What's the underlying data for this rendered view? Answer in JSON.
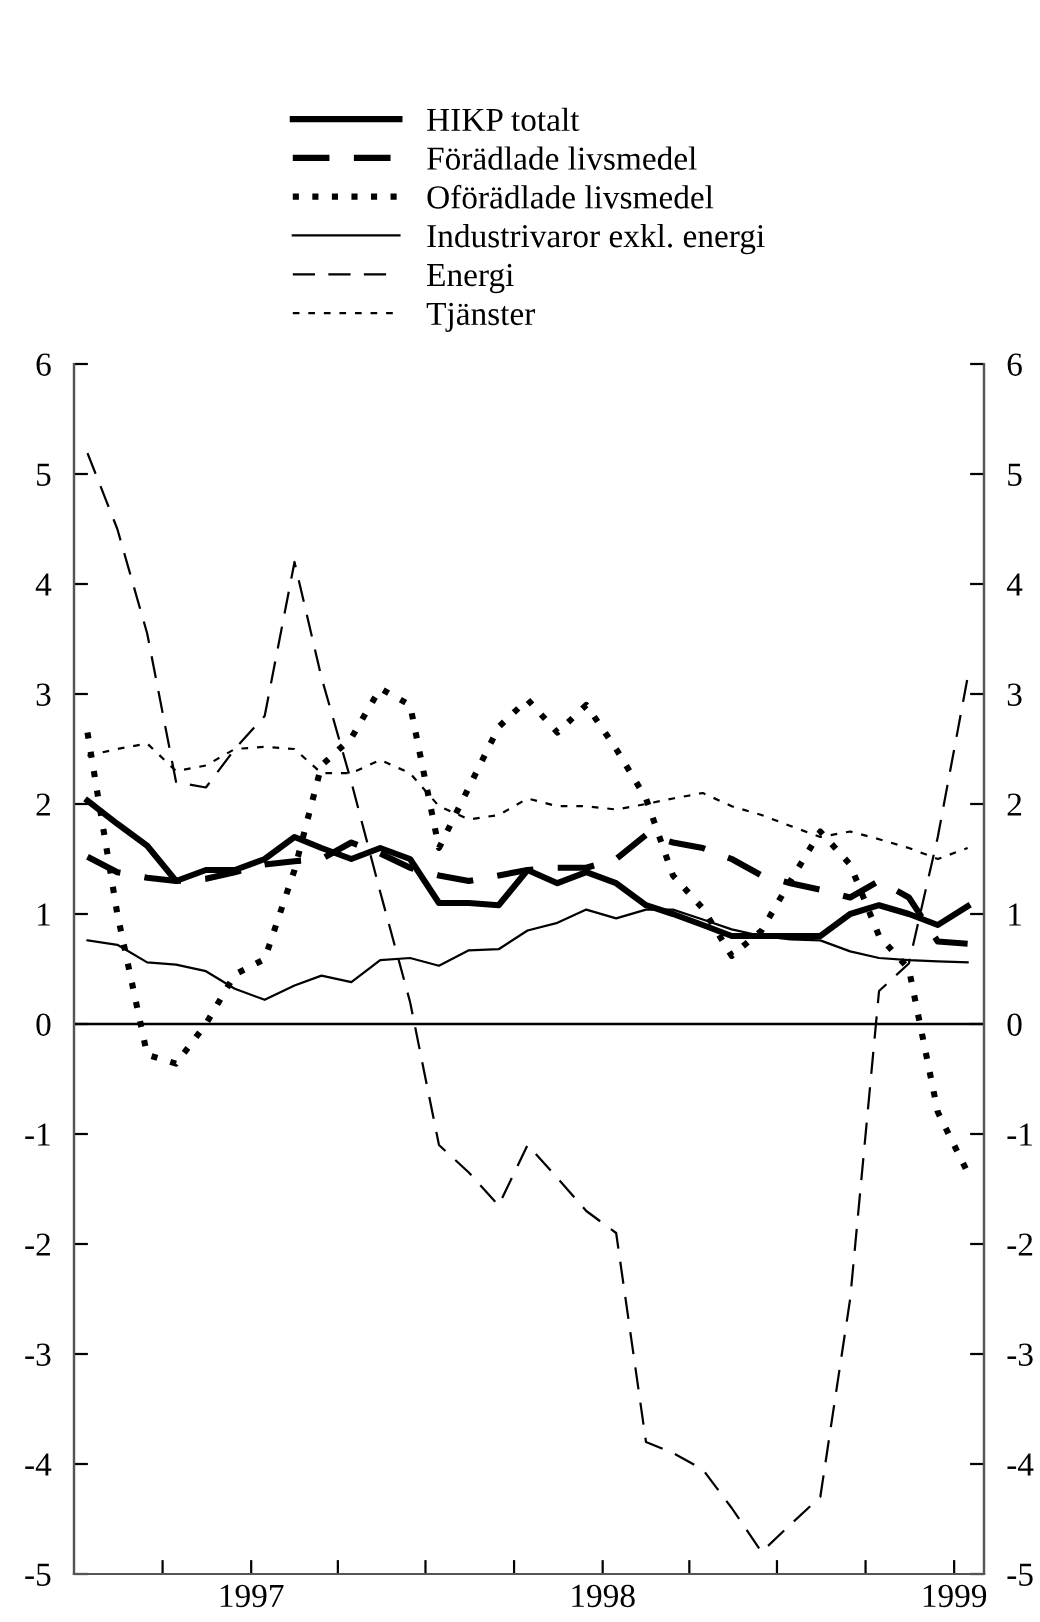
{
  "chart_data": {
    "type": "line",
    "x": [
      "1996-07-15",
      "1996-08-15",
      "1996-09-15",
      "1996-10-15",
      "1996-11-15",
      "1996-12-15",
      "1997-01-15",
      "1997-02-15",
      "1997-03-15",
      "1997-04-15",
      "1997-05-15",
      "1997-06-15",
      "1997-07-15",
      "1997-08-15",
      "1997-09-15",
      "1997-10-15",
      "1997-11-15",
      "1997-12-15",
      "1998-01-15",
      "1998-02-15",
      "1998-03-15",
      "1998-04-15",
      "1998-05-15",
      "1998-06-15",
      "1998-07-15",
      "1998-08-15",
      "1998-09-15",
      "1998-10-15",
      "1998-11-15",
      "1998-12-15",
      "1999-01-15"
    ],
    "series": [
      {
        "name": "HIKP totalt",
        "color": "#000000",
        "line_style": "solid",
        "values": [
          2.03,
          1.82,
          1.62,
          1.3,
          1.4,
          1.4,
          1.5,
          1.7,
          1.6,
          1.5,
          1.6,
          1.5,
          1.1,
          1.1,
          1.08,
          1.4,
          1.28,
          1.38,
          1.28,
          1.08,
          1.0,
          0.9,
          0.8,
          0.8,
          0.8,
          0.8,
          1.0,
          1.08,
          1.0,
          0.9,
          1.07
        ]
      },
      {
        "name": "Förädlade livsmedel",
        "color": "#000000",
        "line_style": "dashed",
        "values": [
          1.52,
          1.38,
          1.33,
          1.3,
          1.32,
          1.38,
          1.45,
          1.48,
          1.5,
          1.65,
          1.55,
          1.42,
          1.35,
          1.3,
          1.35,
          1.4,
          1.42,
          1.42,
          1.5,
          1.72,
          1.65,
          1.6,
          1.5,
          1.35,
          1.28,
          1.22,
          1.15,
          1.3,
          1.15,
          0.75,
          0.73
        ]
      },
      {
        "name": "Oförädlade livsmedel",
        "color": "#000000",
        "line_style": "dotted",
        "values": [
          2.65,
          1.0,
          -0.28,
          -0.36,
          0.0,
          0.45,
          0.59,
          1.4,
          2.35,
          2.6,
          3.05,
          2.9,
          1.6,
          2.15,
          2.7,
          2.95,
          2.65,
          2.9,
          2.5,
          2.05,
          1.35,
          1.05,
          0.62,
          0.85,
          1.3,
          1.75,
          1.45,
          0.8,
          0.5,
          -0.8,
          -1.35
        ]
      },
      {
        "name": "Industrivaror exkl. energi",
        "color": "#000000",
        "line_style": "solid",
        "values": [
          0.76,
          0.72,
          0.56,
          0.54,
          0.48,
          0.32,
          0.22,
          0.35,
          0.44,
          0.38,
          0.58,
          0.6,
          0.53,
          0.67,
          0.68,
          0.85,
          0.92,
          1.04,
          0.96,
          1.04,
          1.04,
          0.95,
          0.86,
          0.8,
          0.77,
          0.76,
          0.66,
          0.6,
          0.58,
          0.57,
          0.56
        ]
      },
      {
        "name": "Energi",
        "color": "#000000",
        "line_style": "dashed",
        "values": [
          5.19,
          4.5,
          3.55,
          2.2,
          2.15,
          2.5,
          2.8,
          4.2,
          3.15,
          2.2,
          1.2,
          0.2,
          -1.1,
          -1.35,
          -1.65,
          -1.1,
          -1.4,
          -1.7,
          -1.9,
          -3.8,
          -3.9,
          -4.05,
          -4.4,
          -4.8,
          -4.55,
          -4.3,
          -2.5,
          0.3,
          0.55,
          1.7,
          3.15
        ]
      },
      {
        "name": "Tjänster",
        "color": "#000000",
        "line_style": "dotted",
        "values": [
          2.44,
          2.5,
          2.55,
          2.3,
          2.35,
          2.5,
          2.52,
          2.5,
          2.28,
          2.28,
          2.4,
          2.28,
          1.98,
          1.86,
          1.9,
          2.05,
          1.98,
          1.98,
          1.95,
          2.0,
          2.05,
          2.1,
          1.98,
          1.9,
          1.8,
          1.7,
          1.75,
          1.68,
          1.6,
          1.5,
          1.6
        ]
      }
    ],
    "xlim": [
      "1996-07-01",
      "1999-02-01"
    ],
    "xticks": [
      {
        "value": "1996-10-01",
        "label": null
      },
      {
        "value": "1997-01-01",
        "label": "1997"
      },
      {
        "value": "1997-04-01",
        "label": null
      },
      {
        "value": "1997-07-01",
        "label": null
      },
      {
        "value": "1997-10-01",
        "label": null
      },
      {
        "value": "1998-01-01",
        "label": "1998"
      },
      {
        "value": "1998-04-01",
        "label": null
      },
      {
        "value": "1998-07-01",
        "label": null
      },
      {
        "value": "1998-10-01",
        "label": null
      },
      {
        "value": "1999-01-01",
        "label": "1999"
      }
    ],
    "ylim": [
      -5,
      6
    ],
    "yticks": [
      -5,
      -4,
      -3,
      -2,
      -1,
      0,
      1,
      2,
      3,
      4,
      5,
      6
    ],
    "y2lim": [
      -5,
      6
    ],
    "y2ticks": [
      -5,
      -4,
      -3,
      -2,
      -1,
      0,
      1,
      2,
      3,
      4,
      5,
      6
    ],
    "ref_lines": [
      {
        "axis": "y",
        "value": 0,
        "color": "#000000",
        "line_style": "solid"
      }
    ],
    "grid": false,
    "legend": "top"
  }
}
